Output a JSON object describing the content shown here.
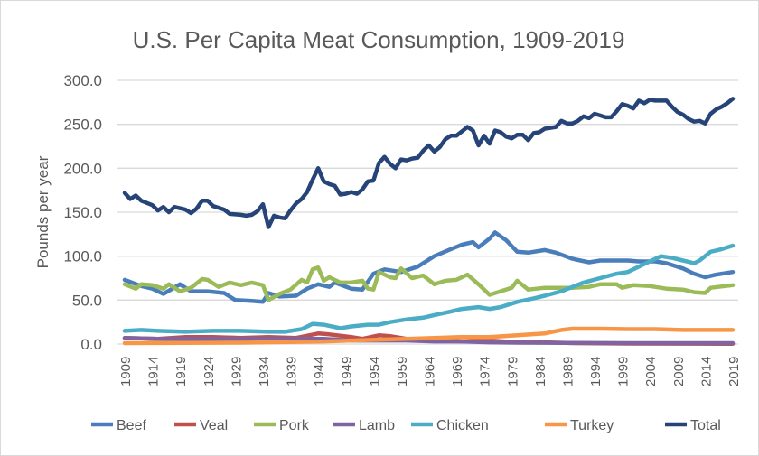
{
  "chart_data": {
    "type": "line",
    "title": "U.S. Per Capita Meat Consumption, 1909-2019",
    "xlabel": "",
    "ylabel": "Pounds per year",
    "xlim": [
      1909,
      2019
    ],
    "ylim": [
      0,
      300
    ],
    "y_ticks": [
      "0.0",
      "50.0",
      "100.0",
      "150.0",
      "200.0",
      "250.0",
      "300.0"
    ],
    "x_ticks": [
      "1909",
      "1914",
      "1919",
      "1924",
      "1929",
      "1934",
      "1939",
      "1944",
      "1949",
      "1954",
      "1959",
      "1964",
      "1969",
      "1974",
      "1979",
      "1984",
      "1989",
      "1994",
      "1999",
      "2004",
      "2009",
      "2014",
      "2019"
    ],
    "grid": "horizontal",
    "legend": "bottom",
    "series": [
      {
        "name": "Beef",
        "color": "#4a7ebb",
        "points": [
          [
            1909,
            73
          ],
          [
            1912,
            66
          ],
          [
            1914,
            63
          ],
          [
            1916,
            57
          ],
          [
            1919,
            68
          ],
          [
            1921,
            60
          ],
          [
            1924,
            60
          ],
          [
            1927,
            58
          ],
          [
            1929,
            50
          ],
          [
            1932,
            49
          ],
          [
            1934,
            48
          ],
          [
            1935,
            58
          ],
          [
            1937,
            54
          ],
          [
            1940,
            55
          ],
          [
            1942,
            63
          ],
          [
            1944,
            68
          ],
          [
            1946,
            65
          ],
          [
            1947,
            70
          ],
          [
            1950,
            63
          ],
          [
            1952,
            62
          ],
          [
            1954,
            80
          ],
          [
            1956,
            85
          ],
          [
            1959,
            82
          ],
          [
            1962,
            88
          ],
          [
            1965,
            100
          ],
          [
            1968,
            108
          ],
          [
            1970,
            113
          ],
          [
            1972,
            116
          ],
          [
            1973,
            110
          ],
          [
            1975,
            120
          ],
          [
            1976,
            127
          ],
          [
            1978,
            118
          ],
          [
            1980,
            105
          ],
          [
            1982,
            104
          ],
          [
            1985,
            107
          ],
          [
            1987,
            104
          ],
          [
            1990,
            97
          ],
          [
            1993,
            93
          ],
          [
            1995,
            95
          ],
          [
            1998,
            95
          ],
          [
            2000,
            95
          ],
          [
            2002,
            94
          ],
          [
            2005,
            94
          ],
          [
            2007,
            92
          ],
          [
            2010,
            86
          ],
          [
            2012,
            80
          ],
          [
            2014,
            76
          ],
          [
            2016,
            79
          ],
          [
            2019,
            82
          ]
        ]
      },
      {
        "name": "Veal",
        "color": "#c0504d",
        "points": [
          [
            1909,
            7
          ],
          [
            1915,
            6
          ],
          [
            1920,
            8
          ],
          [
            1925,
            8
          ],
          [
            1930,
            7
          ],
          [
            1935,
            8
          ],
          [
            1940,
            7
          ],
          [
            1944,
            12
          ],
          [
            1946,
            11
          ],
          [
            1950,
            8
          ],
          [
            1952,
            6
          ],
          [
            1955,
            10
          ],
          [
            1957,
            9
          ],
          [
            1960,
            6
          ],
          [
            1965,
            5
          ],
          [
            1970,
            3
          ],
          [
            1975,
            4
          ],
          [
            1980,
            2
          ],
          [
            1985,
            2
          ],
          [
            1990,
            1
          ],
          [
            2000,
            0.5
          ],
          [
            2019,
            0.3
          ]
        ]
      },
      {
        "name": "Pork",
        "color": "#9bbb59",
        "points": [
          [
            1909,
            68
          ],
          [
            1911,
            63
          ],
          [
            1912,
            68
          ],
          [
            1914,
            67
          ],
          [
            1916,
            63
          ],
          [
            1917,
            68
          ],
          [
            1919,
            60
          ],
          [
            1921,
            64
          ],
          [
            1923,
            74
          ],
          [
            1924,
            73
          ],
          [
            1926,
            65
          ],
          [
            1928,
            70
          ],
          [
            1930,
            67
          ],
          [
            1932,
            70
          ],
          [
            1934,
            67
          ],
          [
            1935,
            50
          ],
          [
            1937,
            57
          ],
          [
            1939,
            62
          ],
          [
            1941,
            73
          ],
          [
            1942,
            70
          ],
          [
            1943,
            85
          ],
          [
            1944,
            87
          ],
          [
            1945,
            72
          ],
          [
            1946,
            76
          ],
          [
            1948,
            70
          ],
          [
            1950,
            70
          ],
          [
            1952,
            72
          ],
          [
            1953,
            63
          ],
          [
            1954,
            62
          ],
          [
            1955,
            82
          ],
          [
            1957,
            76
          ],
          [
            1958,
            75
          ],
          [
            1959,
            86
          ],
          [
            1961,
            75
          ],
          [
            1963,
            78
          ],
          [
            1965,
            68
          ],
          [
            1967,
            72
          ],
          [
            1969,
            73
          ],
          [
            1971,
            79
          ],
          [
            1973,
            68
          ],
          [
            1975,
            56
          ],
          [
            1977,
            60
          ],
          [
            1979,
            64
          ],
          [
            1980,
            72
          ],
          [
            1982,
            62
          ],
          [
            1985,
            64
          ],
          [
            1988,
            64
          ],
          [
            1990,
            64
          ],
          [
            1993,
            65
          ],
          [
            1995,
            68
          ],
          [
            1998,
            68
          ],
          [
            1999,
            64
          ],
          [
            2001,
            67
          ],
          [
            2004,
            66
          ],
          [
            2007,
            63
          ],
          [
            2010,
            62
          ],
          [
            2012,
            59
          ],
          [
            2014,
            58
          ],
          [
            2015,
            64
          ],
          [
            2019,
            67
          ]
        ]
      },
      {
        "name": "Lamb",
        "color": "#8064a2",
        "points": [
          [
            1909,
            7
          ],
          [
            1915,
            6
          ],
          [
            1920,
            6
          ],
          [
            1930,
            6
          ],
          [
            1940,
            6
          ],
          [
            1945,
            6
          ],
          [
            1950,
            4
          ],
          [
            1960,
            4
          ],
          [
            1965,
            3
          ],
          [
            1970,
            3
          ],
          [
            1975,
            2
          ],
          [
            1980,
            1.5
          ],
          [
            1990,
            1.2
          ],
          [
            2000,
            1
          ],
          [
            2019,
            1
          ]
        ]
      },
      {
        "name": "Chicken",
        "color": "#4bacc6",
        "points": [
          [
            1909,
            15
          ],
          [
            1912,
            16
          ],
          [
            1915,
            15
          ],
          [
            1920,
            14
          ],
          [
            1925,
            15
          ],
          [
            1930,
            15
          ],
          [
            1935,
            14
          ],
          [
            1938,
            14
          ],
          [
            1941,
            17
          ],
          [
            1943,
            23
          ],
          [
            1945,
            22
          ],
          [
            1948,
            18
          ],
          [
            1950,
            20
          ],
          [
            1953,
            22
          ],
          [
            1955,
            22
          ],
          [
            1957,
            25
          ],
          [
            1960,
            28
          ],
          [
            1963,
            30
          ],
          [
            1965,
            33
          ],
          [
            1968,
            37
          ],
          [
            1970,
            40
          ],
          [
            1973,
            42
          ],
          [
            1975,
            40
          ],
          [
            1977,
            42
          ],
          [
            1980,
            48
          ],
          [
            1983,
            52
          ],
          [
            1985,
            55
          ],
          [
            1988,
            60
          ],
          [
            1990,
            65
          ],
          [
            1992,
            70
          ],
          [
            1995,
            75
          ],
          [
            1998,
            80
          ],
          [
            2000,
            82
          ],
          [
            2002,
            88
          ],
          [
            2004,
            94
          ],
          [
            2006,
            100
          ],
          [
            2008,
            98
          ],
          [
            2010,
            95
          ],
          [
            2012,
            92
          ],
          [
            2013,
            95
          ],
          [
            2015,
            105
          ],
          [
            2017,
            108
          ],
          [
            2019,
            112
          ]
        ]
      },
      {
        "name": "Turkey",
        "color": "#f79646",
        "points": [
          [
            1909,
            1
          ],
          [
            1920,
            1.2
          ],
          [
            1930,
            1.5
          ],
          [
            1940,
            2.5
          ],
          [
            1945,
            3
          ],
          [
            1950,
            4
          ],
          [
            1955,
            5
          ],
          [
            1960,
            6
          ],
          [
            1965,
            7
          ],
          [
            1970,
            8
          ],
          [
            1975,
            8
          ],
          [
            1980,
            10
          ],
          [
            1985,
            12
          ],
          [
            1988,
            16
          ],
          [
            1990,
            17.5
          ],
          [
            1995,
            17.5
          ],
          [
            2000,
            17
          ],
          [
            2005,
            17
          ],
          [
            2010,
            16
          ],
          [
            2015,
            16
          ],
          [
            2019,
            16
          ]
        ]
      },
      {
        "name": "Total",
        "color": "#264478",
        "points": [
          [
            1909,
            172
          ],
          [
            1910,
            165
          ],
          [
            1911,
            169
          ],
          [
            1912,
            163
          ],
          [
            1914,
            158
          ],
          [
            1915,
            152
          ],
          [
            1916,
            156
          ],
          [
            1917,
            150
          ],
          [
            1918,
            156
          ],
          [
            1920,
            153
          ],
          [
            1921,
            149
          ],
          [
            1922,
            154
          ],
          [
            1923,
            163
          ],
          [
            1924,
            163
          ],
          [
            1925,
            157
          ],
          [
            1927,
            153
          ],
          [
            1928,
            148
          ],
          [
            1930,
            147
          ],
          [
            1931,
            146
          ],
          [
            1932,
            147
          ],
          [
            1933,
            151
          ],
          [
            1934,
            159
          ],
          [
            1935,
            133
          ],
          [
            1936,
            146
          ],
          [
            1937,
            144
          ],
          [
            1938,
            143
          ],
          [
            1939,
            152
          ],
          [
            1940,
            160
          ],
          [
            1941,
            165
          ],
          [
            1942,
            173
          ],
          [
            1943,
            187
          ],
          [
            1944,
            200
          ],
          [
            1945,
            185
          ],
          [
            1946,
            182
          ],
          [
            1947,
            180
          ],
          [
            1948,
            170
          ],
          [
            1949,
            171
          ],
          [
            1950,
            173
          ],
          [
            1951,
            171
          ],
          [
            1952,
            176
          ],
          [
            1953,
            185
          ],
          [
            1954,
            186
          ],
          [
            1955,
            206
          ],
          [
            1956,
            213
          ],
          [
            1957,
            205
          ],
          [
            1958,
            200
          ],
          [
            1959,
            210
          ],
          [
            1960,
            209
          ],
          [
            1961,
            211
          ],
          [
            1962,
            212
          ],
          [
            1963,
            220
          ],
          [
            1964,
            226
          ],
          [
            1965,
            219
          ],
          [
            1966,
            224
          ],
          [
            1967,
            233
          ],
          [
            1968,
            237
          ],
          [
            1969,
            237
          ],
          [
            1970,
            242
          ],
          [
            1971,
            247
          ],
          [
            1972,
            243
          ],
          [
            1973,
            226
          ],
          [
            1974,
            237
          ],
          [
            1975,
            228
          ],
          [
            1976,
            243
          ],
          [
            1977,
            241
          ],
          [
            1978,
            236
          ],
          [
            1979,
            234
          ],
          [
            1980,
            238
          ],
          [
            1981,
            238
          ],
          [
            1982,
            232
          ],
          [
            1983,
            240
          ],
          [
            1984,
            241
          ],
          [
            1985,
            245
          ],
          [
            1986,
            246
          ],
          [
            1987,
            247
          ],
          [
            1988,
            254
          ],
          [
            1989,
            251
          ],
          [
            1990,
            251
          ],
          [
            1991,
            254
          ],
          [
            1992,
            259
          ],
          [
            1993,
            257
          ],
          [
            1994,
            262
          ],
          [
            1995,
            260
          ],
          [
            1996,
            258
          ],
          [
            1997,
            258
          ],
          [
            1998,
            265
          ],
          [
            1999,
            273
          ],
          [
            2000,
            271
          ],
          [
            2001,
            268
          ],
          [
            2002,
            277
          ],
          [
            2003,
            274
          ],
          [
            2004,
            278
          ],
          [
            2005,
            277
          ],
          [
            2006,
            277
          ],
          [
            2007,
            277
          ],
          [
            2008,
            270
          ],
          [
            2009,
            264
          ],
          [
            2010,
            261
          ],
          [
            2011,
            256
          ],
          [
            2012,
            253
          ],
          [
            2013,
            254
          ],
          [
            2014,
            251
          ],
          [
            2015,
            262
          ],
          [
            2016,
            267
          ],
          [
            2017,
            270
          ],
          [
            2018,
            274
          ],
          [
            2019,
            279
          ]
        ]
      }
    ]
  }
}
